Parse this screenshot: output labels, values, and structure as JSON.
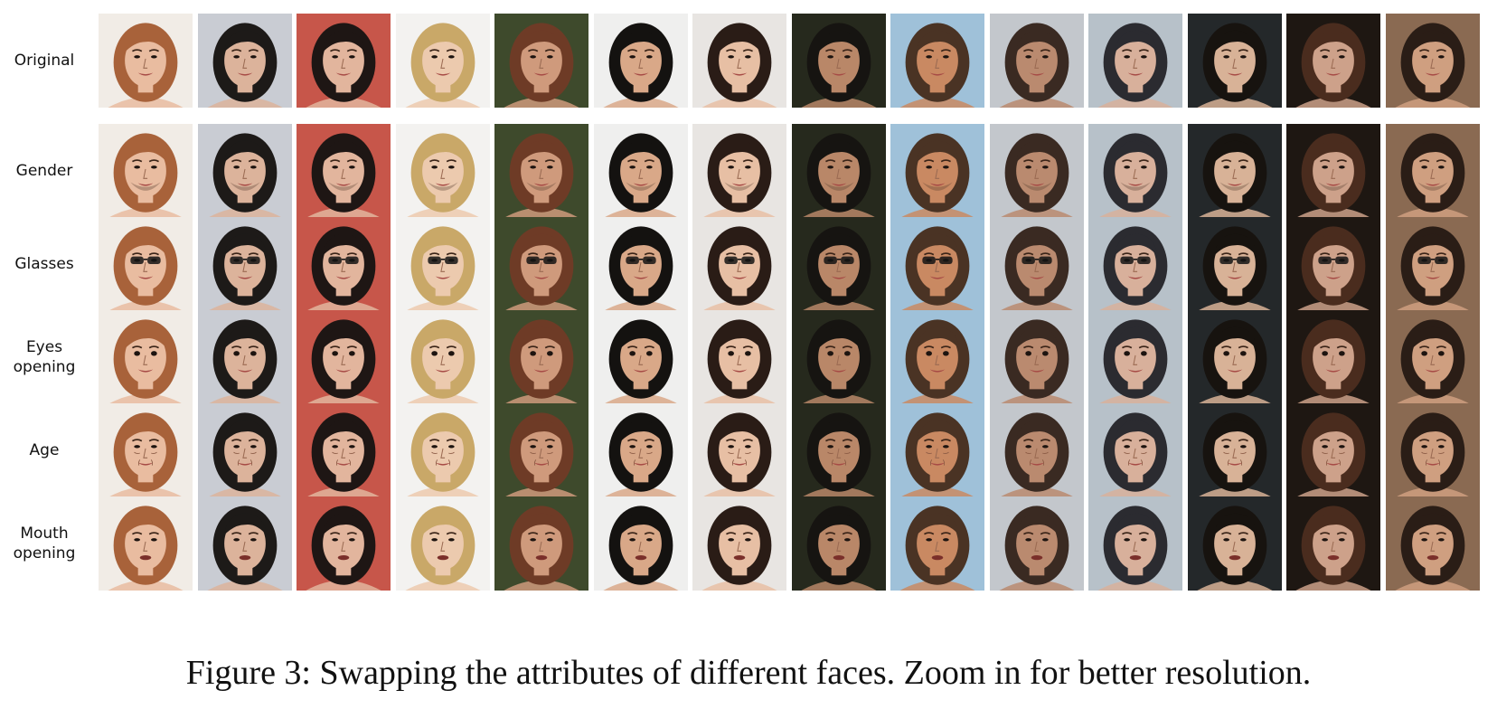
{
  "figure": {
    "caption": "Figure 3: Swapping the attributes of different faces. Zoom in for better resolution.",
    "rows": [
      {
        "label": "Original",
        "attribute": "none"
      },
      {
        "label": "Gender",
        "attribute": "gender"
      },
      {
        "label": "Glasses",
        "attribute": "glasses"
      },
      {
        "label": "Eyes\nopening",
        "attribute": "eyes"
      },
      {
        "label": "Age",
        "attribute": "age"
      },
      {
        "label": "Mouth\nopening",
        "attribute": "mouth"
      }
    ],
    "columns": [
      {
        "bg": "#f1ece6",
        "skin": "#e9bca0",
        "hair": "#a8623a"
      },
      {
        "bg": "#c9ccd3",
        "skin": "#dcb39b",
        "hair": "#1d1a18"
      },
      {
        "bg": "#c7564a",
        "skin": "#e2b59d",
        "hair": "#1e1614"
      },
      {
        "bg": "#f3f2f0",
        "skin": "#eccaae",
        "hair": "#c9a868"
      },
      {
        "bg": "#3e4a2c",
        "skin": "#cf9a7c",
        "hair": "#6e3b26"
      },
      {
        "bg": "#efefee",
        "skin": "#d9a888",
        "hair": "#141210"
      },
      {
        "bg": "#e8e5e2",
        "skin": "#e7bfa4",
        "hair": "#2a1c16"
      },
      {
        "bg": "#26291d",
        "skin": "#b98768",
        "hair": "#161411"
      },
      {
        "bg": "#9fc1d9",
        "skin": "#c98962",
        "hair": "#4a3324"
      },
      {
        "bg": "#c3c7cc",
        "skin": "#ba8a6f",
        "hair": "#3a2a22"
      },
      {
        "bg": "#b7c1c9",
        "skin": "#d8b09b",
        "hair": "#2b2b30"
      },
      {
        "bg": "#24282a",
        "skin": "#d8b297",
        "hair": "#17130f"
      },
      {
        "bg": "#1e1712",
        "skin": "#cda18a",
        "hair": "#4a2c1e"
      },
      {
        "bg": "#8a6a52",
        "skin": "#cf9f80",
        "hair": "#2a1d16"
      }
    ]
  }
}
